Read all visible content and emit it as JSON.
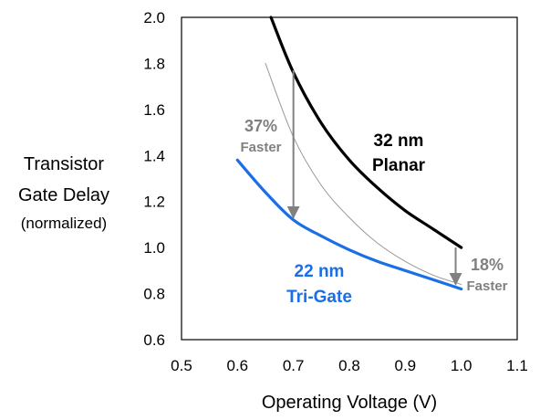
{
  "chart_data": {
    "type": "line",
    "xlabel": "Operating Voltage (V)",
    "ylabel_lines": [
      "Transistor",
      "Gate Delay",
      "(normalized)"
    ],
    "xlim": [
      0.5,
      1.1
    ],
    "ylim": [
      0.6,
      2.0
    ],
    "x_ticks": [
      "0.5",
      "0.6",
      "0.7",
      "0.8",
      "0.9",
      "1.0",
      "1.1"
    ],
    "y_ticks": [
      "0.6",
      "0.8",
      "1.0",
      "1.2",
      "1.4",
      "1.6",
      "1.8",
      "2.0"
    ],
    "grid": false,
    "series": [
      {
        "name_lines": [
          "32 nm",
          "Planar"
        ],
        "color": "#000000",
        "x": [
          0.66,
          0.7,
          0.75,
          0.8,
          0.85,
          0.9,
          0.95,
          1.0
        ],
        "y": [
          2.0,
          1.76,
          1.54,
          1.38,
          1.26,
          1.16,
          1.08,
          1.0
        ]
      },
      {
        "name_lines": [
          "22 nm",
          "Tri-Gate"
        ],
        "color": "#1a6ee6",
        "x": [
          0.6,
          0.65,
          0.7,
          0.75,
          0.8,
          0.85,
          0.9,
          0.95,
          1.0
        ],
        "y": [
          1.38,
          1.24,
          1.12,
          1.05,
          0.99,
          0.94,
          0.9,
          0.86,
          0.82
        ]
      },
      {
        "color": "#999999",
        "x": [
          0.65,
          0.7,
          0.75,
          0.8,
          0.85,
          0.9,
          0.95,
          1.0
        ],
        "y": [
          1.8,
          1.48,
          1.27,
          1.13,
          1.02,
          0.94,
          0.88,
          0.84
        ]
      }
    ],
    "annotations": [
      {
        "lines": [
          "37%",
          "Faster"
        ],
        "color": "#808080",
        "arrow_x": 0.7,
        "arrow_from": 1.77,
        "arrow_to": 1.13
      },
      {
        "lines": [
          "18%",
          "Faster"
        ],
        "color": "#808080",
        "arrow_x": 0.99,
        "arrow_from": 1.0,
        "arrow_to": 0.84
      }
    ]
  }
}
